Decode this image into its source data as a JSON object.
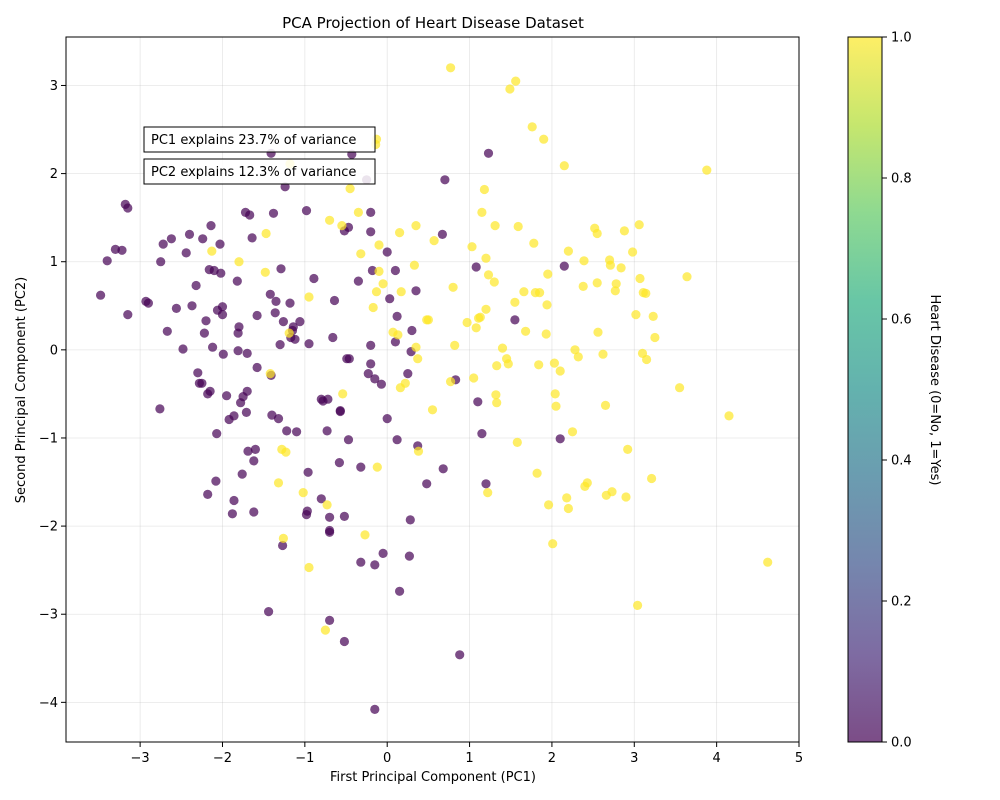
{
  "chart_data": {
    "type": "scatter",
    "title": "PCA Projection of Heart Disease Dataset",
    "xlabel": "First Principal Component (PC1)",
    "ylabel": "Second Principal Component (PC2)",
    "xlim": [
      -3.9,
      5.0
    ],
    "ylim": [
      -4.45,
      3.55
    ],
    "xticks": [
      -3,
      -2,
      -1,
      0,
      1,
      2,
      3,
      4,
      5
    ],
    "yticks": [
      -4,
      -3,
      -2,
      -1,
      0,
      1,
      2,
      3
    ],
    "grid": true,
    "annotations": [
      "PC1 explains 23.7% of variance",
      "PC2 explains 12.3% of variance"
    ],
    "colorbar": {
      "label": "Heart Disease (0=No, 1=Yes)",
      "range": [
        0.0,
        1.0
      ],
      "ticks": [
        "0.0",
        "0.2",
        "0.4",
        "0.6",
        "0.8",
        "1.0"
      ],
      "colormap": "viridis"
    },
    "colors": {
      "class0": "#440154",
      "class1": "#fde725"
    },
    "series": [
      {
        "class": 0,
        "points": [
          [
            -3.48,
            0.62
          ],
          [
            -3.4,
            1.01
          ],
          [
            -3.3,
            1.14
          ],
          [
            -3.22,
            1.13
          ],
          [
            -3.18,
            1.65
          ],
          [
            -3.15,
            1.61
          ],
          [
            -3.15,
            0.4
          ],
          [
            -2.93,
            0.55
          ],
          [
            -2.9,
            0.53
          ],
          [
            -2.76,
            -0.67
          ],
          [
            -2.75,
            1.0
          ],
          [
            -2.72,
            1.2
          ],
          [
            -2.67,
            0.21
          ],
          [
            -2.62,
            1.26
          ],
          [
            -2.56,
            0.47
          ],
          [
            -2.48,
            0.01
          ],
          [
            -2.44,
            1.1
          ],
          [
            -2.4,
            1.31
          ],
          [
            -2.37,
            0.5
          ],
          [
            -2.32,
            0.73
          ],
          [
            -2.3,
            -0.26
          ],
          [
            -2.28,
            -0.38
          ],
          [
            -2.25,
            -0.38
          ],
          [
            -2.24,
            1.26
          ],
          [
            -2.22,
            0.19
          ],
          [
            -2.2,
            0.33
          ],
          [
            -2.18,
            -0.5
          ],
          [
            -2.18,
            -1.64
          ],
          [
            -2.16,
            0.91
          ],
          [
            -2.15,
            -0.47
          ],
          [
            -2.14,
            1.41
          ],
          [
            -2.12,
            0.03
          ],
          [
            -2.1,
            0.9
          ],
          [
            -2.08,
            -1.49
          ],
          [
            -2.07,
            -0.95
          ],
          [
            -2.06,
            0.45
          ],
          [
            -2.03,
            1.2
          ],
          [
            -2.02,
            0.87
          ],
          [
            -2.0,
            0.49
          ],
          [
            -2.0,
            0.4
          ],
          [
            -1.99,
            -0.05
          ],
          [
            -1.95,
            -0.52
          ],
          [
            -1.92,
            -0.79
          ],
          [
            -1.88,
            -1.86
          ],
          [
            -1.86,
            -0.75
          ],
          [
            -1.86,
            -1.71
          ],
          [
            -1.82,
            0.78
          ],
          [
            -1.81,
            0.19
          ],
          [
            -1.81,
            -0.01
          ],
          [
            -1.8,
            0.26
          ],
          [
            -1.78,
            -0.6
          ],
          [
            -1.76,
            -1.41
          ],
          [
            -1.75,
            -0.53
          ],
          [
            -1.72,
            1.56
          ],
          [
            -1.71,
            -0.71
          ],
          [
            -1.7,
            -0.04
          ],
          [
            -1.7,
            -0.47
          ],
          [
            -1.69,
            -1.15
          ],
          [
            -1.67,
            1.53
          ],
          [
            -1.64,
            1.27
          ],
          [
            -1.62,
            -1.84
          ],
          [
            -1.62,
            -1.26
          ],
          [
            -1.6,
            -1.13
          ],
          [
            -1.58,
            0.39
          ],
          [
            -1.58,
            -0.2
          ],
          [
            -1.44,
            -2.97
          ],
          [
            -1.42,
            0.63
          ],
          [
            -1.41,
            2.23
          ],
          [
            -1.41,
            -0.29
          ],
          [
            -1.4,
            -0.74
          ],
          [
            -1.38,
            1.55
          ],
          [
            -1.36,
            0.42
          ],
          [
            -1.35,
            0.55
          ],
          [
            -1.32,
            -0.78
          ],
          [
            -1.3,
            0.06
          ],
          [
            -1.29,
            0.92
          ],
          [
            -1.27,
            -2.22
          ],
          [
            -1.26,
            0.32
          ],
          [
            -1.24,
            1.85
          ],
          [
            -1.22,
            -0.92
          ],
          [
            -1.18,
            0.53
          ],
          [
            -1.17,
            0.14
          ],
          [
            -1.15,
            0.22
          ],
          [
            -1.14,
            0.26
          ],
          [
            -1.12,
            0.12
          ],
          [
            -1.1,
            -0.93
          ],
          [
            -1.06,
            0.32
          ],
          [
            -0.98,
            1.58
          ],
          [
            -0.98,
            -1.87
          ],
          [
            -0.97,
            -1.83
          ],
          [
            -0.96,
            -1.39
          ],
          [
            -0.95,
            0.07
          ],
          [
            -0.89,
            0.81
          ],
          [
            -0.8,
            -0.56
          ],
          [
            -0.8,
            -1.69
          ],
          [
            -0.78,
            -0.58
          ],
          [
            -0.73,
            -0.92
          ],
          [
            -0.72,
            -0.56
          ],
          [
            -0.7,
            -2.05
          ],
          [
            -0.7,
            -2.07
          ],
          [
            -0.7,
            -1.9
          ],
          [
            -0.7,
            -3.07
          ],
          [
            -0.66,
            0.14
          ],
          [
            -0.64,
            0.56
          ],
          [
            -0.58,
            -1.28
          ],
          [
            -0.57,
            -0.7
          ],
          [
            -0.57,
            -0.69
          ],
          [
            -0.52,
            1.35
          ],
          [
            -0.52,
            -1.89
          ],
          [
            -0.52,
            -3.31
          ],
          [
            -0.49,
            -0.1
          ],
          [
            -0.47,
            1.39
          ],
          [
            -0.47,
            -1.02
          ],
          [
            -0.46,
            -0.1
          ],
          [
            -0.43,
            2.22
          ],
          [
            -0.35,
            0.78
          ],
          [
            -0.32,
            -1.33
          ],
          [
            -0.32,
            -2.41
          ],
          [
            -0.25,
            1.93
          ],
          [
            -0.23,
            -0.27
          ],
          [
            -0.2,
            1.56
          ],
          [
            -0.2,
            1.34
          ],
          [
            -0.2,
            -0.16
          ],
          [
            -0.2,
            0.05
          ],
          [
            -0.18,
            0.9
          ],
          [
            -0.15,
            -0.33
          ],
          [
            -0.15,
            -2.44
          ],
          [
            -0.15,
            -4.08
          ],
          [
            -0.07,
            -0.39
          ],
          [
            -0.05,
            -2.31
          ],
          [
            0.0,
            1.11
          ],
          [
            0.0,
            -0.78
          ],
          [
            0.03,
            0.58
          ],
          [
            0.1,
            0.09
          ],
          [
            0.1,
            0.9
          ],
          [
            0.12,
            -1.02
          ],
          [
            0.12,
            0.38
          ],
          [
            0.15,
            -2.74
          ],
          [
            0.25,
            -0.27
          ],
          [
            0.27,
            -2.34
          ],
          [
            0.28,
            -1.93
          ],
          [
            0.29,
            -0.02
          ],
          [
            0.3,
            0.22
          ],
          [
            0.35,
            0.67
          ],
          [
            0.37,
            -1.09
          ],
          [
            0.48,
            -1.52
          ],
          [
            0.67,
            1.31
          ],
          [
            0.68,
            -1.35
          ],
          [
            0.7,
            1.93
          ],
          [
            0.83,
            -0.34
          ],
          [
            0.88,
            -3.46
          ],
          [
            1.08,
            0.94
          ],
          [
            1.1,
            -0.59
          ],
          [
            1.15,
            -0.95
          ],
          [
            1.2,
            -1.52
          ],
          [
            1.23,
            2.23
          ],
          [
            1.55,
            0.34
          ],
          [
            2.1,
            -1.01
          ],
          [
            2.15,
            0.95
          ]
        ]
      },
      {
        "class": 1,
        "points": [
          [
            -1.42,
            -0.27
          ],
          [
            -1.47,
            1.32
          ],
          [
            -1.48,
            0.88
          ],
          [
            -1.8,
            1.0
          ],
          [
            -2.13,
            1.12
          ],
          [
            -1.18,
            2.11
          ],
          [
            -1.19,
            0.19
          ],
          [
            -1.23,
            -1.16
          ],
          [
            -1.26,
            -2.14
          ],
          [
            -1.28,
            -1.13
          ],
          [
            -1.32,
            -1.51
          ],
          [
            -1.02,
            -1.62
          ],
          [
            -0.95,
            0.6
          ],
          [
            -0.95,
            -2.47
          ],
          [
            -0.75,
            -3.18
          ],
          [
            -0.73,
            -1.76
          ],
          [
            -0.7,
            1.47
          ],
          [
            -0.55,
            1.41
          ],
          [
            -0.54,
            -0.5
          ],
          [
            -0.45,
            1.83
          ],
          [
            -0.35,
            1.56
          ],
          [
            -0.32,
            1.09
          ],
          [
            -0.27,
            -2.1
          ],
          [
            -0.17,
            0.48
          ],
          [
            -0.14,
            2.33
          ],
          [
            -0.13,
            2.39
          ],
          [
            -0.13,
            0.66
          ],
          [
            -0.12,
            -1.33
          ],
          [
            -0.1,
            1.19
          ],
          [
            -0.1,
            0.89
          ],
          [
            -0.05,
            0.75
          ],
          [
            0.07,
            0.2
          ],
          [
            0.13,
            0.17
          ],
          [
            0.15,
            1.33
          ],
          [
            0.17,
            0.66
          ],
          [
            0.16,
            -0.43
          ],
          [
            0.22,
            -0.38
          ],
          [
            0.33,
            0.96
          ],
          [
            0.35,
            1.41
          ],
          [
            0.35,
            0.03
          ],
          [
            0.37,
            -0.1
          ],
          [
            0.38,
            -1.15
          ],
          [
            0.48,
            0.34
          ],
          [
            0.5,
            0.34
          ],
          [
            0.55,
            -0.68
          ],
          [
            0.57,
            1.24
          ],
          [
            0.77,
            3.2
          ],
          [
            0.77,
            -0.36
          ],
          [
            0.8,
            0.71
          ],
          [
            0.82,
            0.05
          ],
          [
            0.97,
            0.31
          ],
          [
            1.03,
            1.17
          ],
          [
            1.05,
            -0.32
          ],
          [
            1.08,
            0.25
          ],
          [
            1.11,
            0.36
          ],
          [
            1.13,
            0.37
          ],
          [
            1.15,
            1.56
          ],
          [
            1.18,
            1.82
          ],
          [
            1.2,
            1.04
          ],
          [
            1.2,
            0.46
          ],
          [
            1.22,
            -1.62
          ],
          [
            1.23,
            0.85
          ],
          [
            1.3,
            0.77
          ],
          [
            1.31,
            1.41
          ],
          [
            1.32,
            -0.51
          ],
          [
            1.33,
            -0.6
          ],
          [
            1.33,
            -0.18
          ],
          [
            1.4,
            0.02
          ],
          [
            1.45,
            -0.1
          ],
          [
            1.47,
            -0.16
          ],
          [
            1.49,
            2.96
          ],
          [
            1.55,
            0.54
          ],
          [
            1.56,
            3.05
          ],
          [
            1.58,
            -1.05
          ],
          [
            1.59,
            1.4
          ],
          [
            1.66,
            0.66
          ],
          [
            1.68,
            0.21
          ],
          [
            1.76,
            2.53
          ],
          [
            1.78,
            1.21
          ],
          [
            1.8,
            0.65
          ],
          [
            1.82,
            -1.4
          ],
          [
            1.84,
            -0.17
          ],
          [
            1.85,
            0.65
          ],
          [
            1.9,
            2.39
          ],
          [
            1.93,
            0.18
          ],
          [
            1.94,
            0.51
          ],
          [
            1.95,
            0.86
          ],
          [
            1.96,
            -1.76
          ],
          [
            2.01,
            -2.2
          ],
          [
            2.03,
            -0.15
          ],
          [
            2.04,
            -0.5
          ],
          [
            2.05,
            -0.64
          ],
          [
            2.1,
            -0.24
          ],
          [
            2.15,
            2.09
          ],
          [
            2.18,
            -1.68
          ],
          [
            2.2,
            1.12
          ],
          [
            2.2,
            -1.8
          ],
          [
            2.25,
            -0.93
          ],
          [
            2.28,
            0.0
          ],
          [
            2.32,
            -0.08
          ],
          [
            2.38,
            0.72
          ],
          [
            2.39,
            1.01
          ],
          [
            2.4,
            -1.55
          ],
          [
            2.43,
            -1.51
          ],
          [
            2.52,
            1.38
          ],
          [
            2.55,
            0.76
          ],
          [
            2.55,
            1.32
          ],
          [
            2.56,
            0.2
          ],
          [
            2.62,
            -0.05
          ],
          [
            2.65,
            -0.63
          ],
          [
            2.66,
            -1.65
          ],
          [
            2.7,
            1.02
          ],
          [
            2.71,
            0.96
          ],
          [
            2.73,
            -1.61
          ],
          [
            2.77,
            0.67
          ],
          [
            2.78,
            0.75
          ],
          [
            2.84,
            0.93
          ],
          [
            2.88,
            1.35
          ],
          [
            2.9,
            -1.67
          ],
          [
            2.92,
            -1.13
          ],
          [
            2.98,
            1.11
          ],
          [
            3.02,
            0.4
          ],
          [
            3.04,
            -2.9
          ],
          [
            3.06,
            1.42
          ],
          [
            3.07,
            0.81
          ],
          [
            3.1,
            -0.04
          ],
          [
            3.11,
            0.65
          ],
          [
            3.14,
            0.64
          ],
          [
            3.15,
            -0.11
          ],
          [
            3.21,
            -1.46
          ],
          [
            3.23,
            0.38
          ],
          [
            3.25,
            0.14
          ],
          [
            3.55,
            -0.43
          ],
          [
            3.64,
            0.83
          ],
          [
            3.88,
            2.04
          ],
          [
            4.15,
            -0.75
          ],
          [
            4.62,
            -2.41
          ]
        ]
      }
    ]
  }
}
